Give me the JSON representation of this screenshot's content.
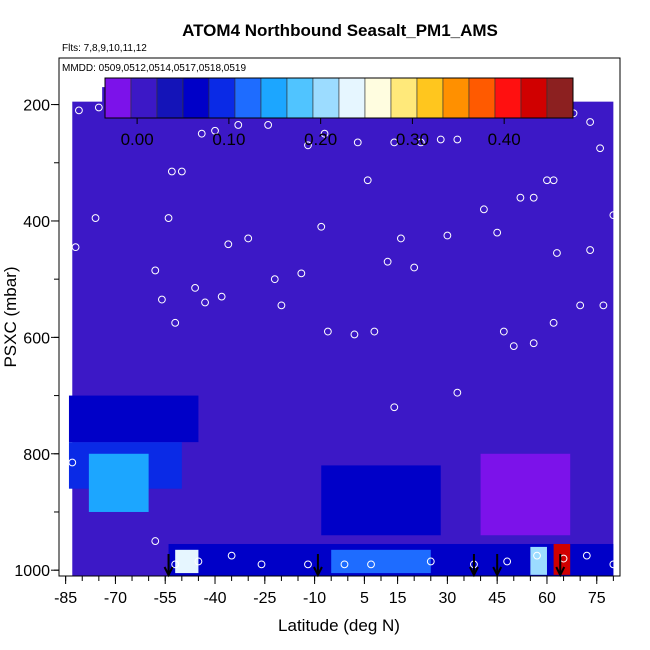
{
  "chart_data": {
    "type": "heatmap",
    "title": "ATOM4 Northbound Seasalt_PM1_AMS",
    "flights_label": "Flts: 7,8,9,10,11,12",
    "dates_label": "MMDD: 0509,0512,0514,0517,0518,0519",
    "xlabel": "Latitude (deg N)",
    "ylabel": "PSXC (mbar)",
    "xlim": [
      -87,
      82
    ],
    "ylim": [
      1010,
      120
    ],
    "x_ticks": [
      -85,
      -70,
      -55,
      -40,
      -25,
      -10,
      5,
      15,
      30,
      45,
      60,
      75
    ],
    "y_ticks": [
      200,
      400,
      600,
      800,
      1000
    ],
    "colorbar": {
      "min": -0.035,
      "max": 0.475,
      "ticks": [
        0.0,
        0.1,
        0.2,
        0.3,
        0.4
      ],
      "tick_labels": [
        "0.00",
        "0.10",
        "0.20",
        "0.30",
        "0.40"
      ],
      "colors": [
        "#7c12ea",
        "#3c18c6",
        "#1414b8",
        "#0000c8",
        "#0a2ae6",
        "#1e6cff",
        "#1ca6ff",
        "#50c4ff",
        "#9cdcff",
        "#e6f6ff",
        "#fffde0",
        "#ffe97a",
        "#ffc61e",
        "#ff9000",
        "#ff5a00",
        "#ff1010",
        "#d00000",
        "#8c2020"
      ]
    },
    "regions": [
      {
        "lat0": -83,
        "lat1": 80,
        "p0": 195,
        "p1": 1010,
        "value": 0.02
      },
      {
        "lat0": -74,
        "lat1": -49,
        "p0": 170,
        "p1": 200,
        "value": 0.02
      },
      {
        "lat0": -84,
        "lat1": -45,
        "p0": 700,
        "p1": 780,
        "value": 0.07
      },
      {
        "lat0": -84,
        "lat1": -50,
        "p0": 780,
        "p1": 860,
        "value": 0.1
      },
      {
        "lat0": -78,
        "lat1": -60,
        "p0": 800,
        "p1": 900,
        "value": 0.14
      },
      {
        "lat0": -8,
        "lat1": 28,
        "p0": 820,
        "p1": 940,
        "value": 0.07
      },
      {
        "lat0": 40,
        "lat1": 67,
        "p0": 800,
        "p1": 940,
        "value": -0.01
      },
      {
        "lat0": -54,
        "lat1": 80,
        "p0": 955,
        "p1": 1010,
        "value": 0.06
      },
      {
        "lat0": -52,
        "lat1": -45,
        "p0": 965,
        "p1": 1005,
        "value": 0.22
      },
      {
        "lat0": -5,
        "lat1": 25,
        "p0": 965,
        "p1": 1005,
        "value": 0.13
      },
      {
        "lat0": 55,
        "lat1": 60,
        "p0": 960,
        "p1": 1008,
        "value": 0.2
      },
      {
        "lat0": 62,
        "lat1": 67,
        "p0": 955,
        "p1": 1008,
        "value": 0.44
      }
    ],
    "sample_points": [
      {
        "lat": -81,
        "p": 210
      },
      {
        "lat": -75,
        "p": 205
      },
      {
        "lat": -72,
        "p": 190
      },
      {
        "lat": -68,
        "p": 190
      },
      {
        "lat": -64,
        "p": 190
      },
      {
        "lat": -60,
        "p": 190
      },
      {
        "lat": -53,
        "p": 315
      },
      {
        "lat": -50,
        "p": 315
      },
      {
        "lat": -44,
        "p": 250
      },
      {
        "lat": -40,
        "p": 245
      },
      {
        "lat": -33,
        "p": 235
      },
      {
        "lat": -24,
        "p": 235
      },
      {
        "lat": -17,
        "p": 210
      },
      {
        "lat": -12,
        "p": 270
      },
      {
        "lat": -7,
        "p": 250
      },
      {
        "lat": 3,
        "p": 265
      },
      {
        "lat": 14,
        "p": 265
      },
      {
        "lat": 22,
        "p": 265
      },
      {
        "lat": 28,
        "p": 260
      },
      {
        "lat": 33,
        "p": 260
      },
      {
        "lat": 45,
        "p": 185
      },
      {
        "lat": 60,
        "p": 330
      },
      {
        "lat": 62,
        "p": 330
      },
      {
        "lat": 68,
        "p": 215
      },
      {
        "lat": 73,
        "p": 230
      },
      {
        "lat": 76,
        "p": 275
      },
      {
        "lat": -85,
        "p": 360
      },
      {
        "lat": -82,
        "p": 445
      },
      {
        "lat": -76,
        "p": 395
      },
      {
        "lat": -54,
        "p": 395
      },
      {
        "lat": -58,
        "p": 485
      },
      {
        "lat": -46,
        "p": 515
      },
      {
        "lat": -36,
        "p": 440
      },
      {
        "lat": -30,
        "p": 430
      },
      {
        "lat": -22,
        "p": 500
      },
      {
        "lat": -14,
        "p": 490
      },
      {
        "lat": -8,
        "p": 410
      },
      {
        "lat": 6,
        "p": 330
      },
      {
        "lat": 12,
        "p": 470
      },
      {
        "lat": 16,
        "p": 430
      },
      {
        "lat": 20,
        "p": 480
      },
      {
        "lat": 30,
        "p": 425
      },
      {
        "lat": 41,
        "p": 380
      },
      {
        "lat": 45,
        "p": 420
      },
      {
        "lat": 52,
        "p": 360
      },
      {
        "lat": 56,
        "p": 360
      },
      {
        "lat": 63,
        "p": 455
      },
      {
        "lat": 73,
        "p": 450
      },
      {
        "lat": 80,
        "p": 390
      },
      {
        "lat": -85,
        "p": 615
      },
      {
        "lat": -56,
        "p": 535
      },
      {
        "lat": -52,
        "p": 575
      },
      {
        "lat": -43,
        "p": 540
      },
      {
        "lat": -38,
        "p": 530
      },
      {
        "lat": -20,
        "p": 545
      },
      {
        "lat": -6,
        "p": 590
      },
      {
        "lat": 2,
        "p": 595
      },
      {
        "lat": 8,
        "p": 590
      },
      {
        "lat": 14,
        "p": 720
      },
      {
        "lat": 33,
        "p": 695
      },
      {
        "lat": 47,
        "p": 590
      },
      {
        "lat": 50,
        "p": 615
      },
      {
        "lat": 56,
        "p": 610
      },
      {
        "lat": 62,
        "p": 575
      },
      {
        "lat": 70,
        "p": 545
      },
      {
        "lat": 77,
        "p": 545
      },
      {
        "lat": -83,
        "p": 815
      },
      {
        "lat": -58,
        "p": 950
      },
      {
        "lat": -52,
        "p": 990
      },
      {
        "lat": -45,
        "p": 985
      },
      {
        "lat": -35,
        "p": 975
      },
      {
        "lat": -26,
        "p": 990
      },
      {
        "lat": -12,
        "p": 990
      },
      {
        "lat": -1,
        "p": 990
      },
      {
        "lat": 7,
        "p": 990
      },
      {
        "lat": 25,
        "p": 985
      },
      {
        "lat": 38,
        "p": 990
      },
      {
        "lat": 48,
        "p": 985
      },
      {
        "lat": 57,
        "p": 975
      },
      {
        "lat": 65,
        "p": 980
      },
      {
        "lat": 72,
        "p": 975
      },
      {
        "lat": 80,
        "p": 990
      }
    ],
    "arrows_lat": [
      -54,
      -9,
      38,
      45,
      64
    ]
  }
}
